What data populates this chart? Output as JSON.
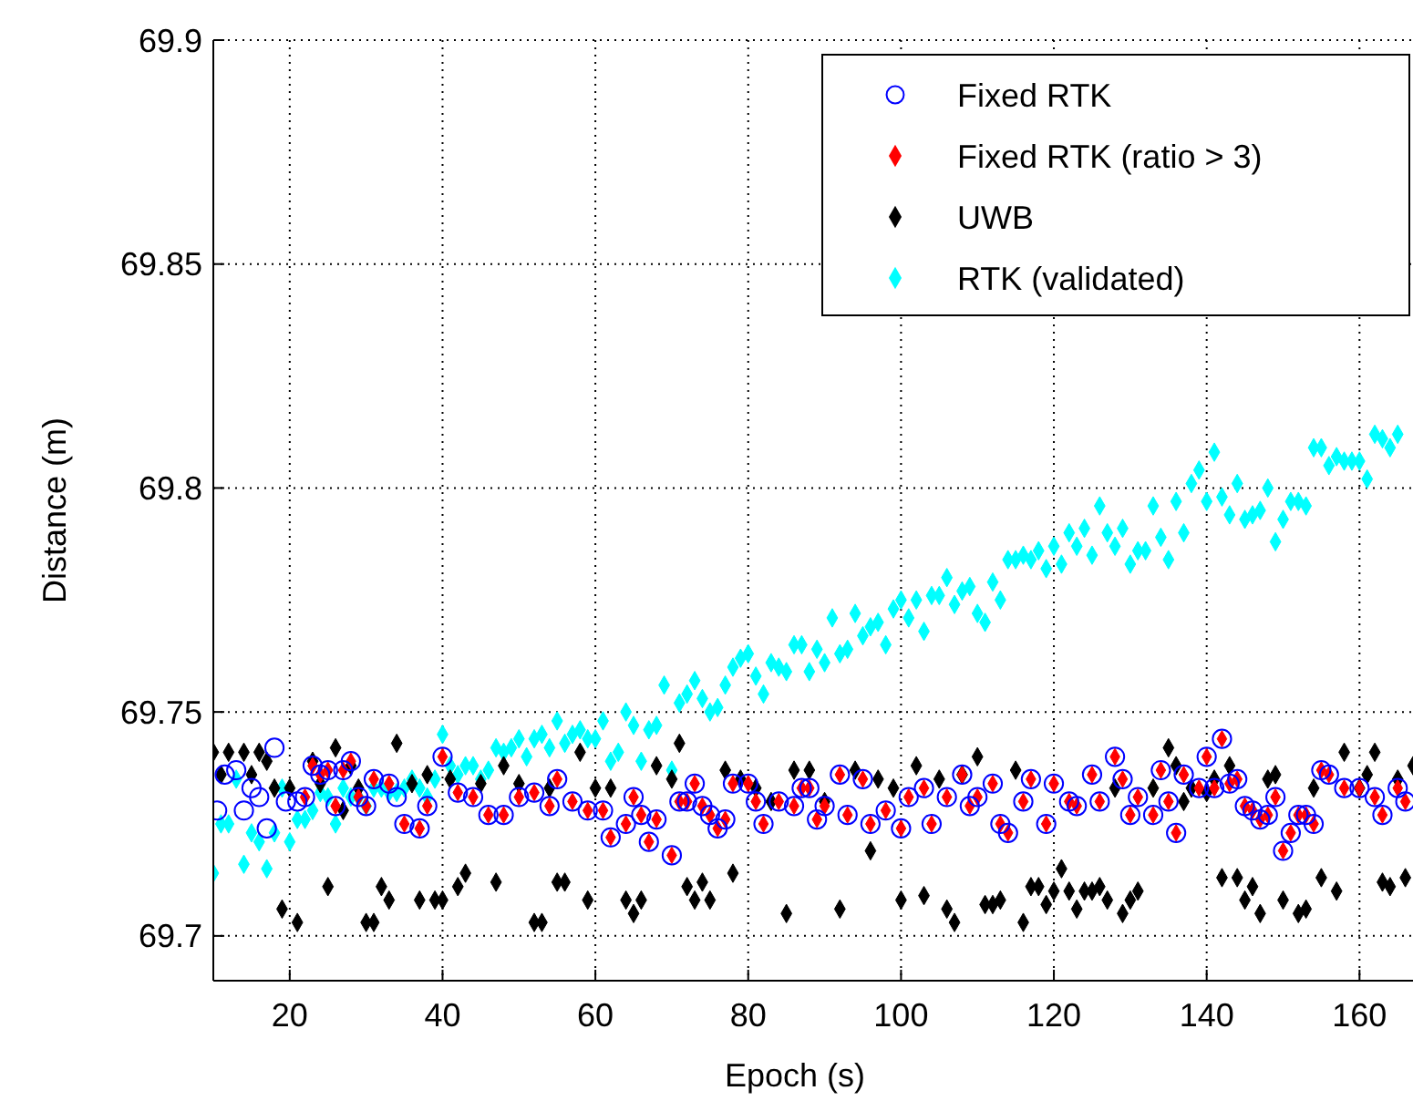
{
  "chart_data": {
    "type": "scatter",
    "xlabel": "Epoch (s)",
    "ylabel": "Distance (m)",
    "xlim": [
      10,
      167
    ],
    "xticks": [
      20,
      40,
      60,
      80,
      100,
      120,
      140,
      160
    ],
    "ylim": [
      69.69,
      69.9
    ],
    "yticks": [
      69.7,
      69.75,
      69.8,
      69.85,
      69.9
    ],
    "grid": true,
    "legend": "top right",
    "series": [
      {
        "name": "Fixed RTK",
        "color": "#0000ff",
        "marker": "circle",
        "x": [
          10.5,
          11.5,
          13,
          14,
          15,
          16,
          17,
          18,
          19.5,
          21,
          22,
          23,
          24,
          25,
          26,
          27,
          28,
          29,
          30,
          31,
          33,
          34,
          35,
          37,
          38,
          40,
          42,
          44,
          46,
          48,
          50,
          52,
          54,
          55,
          57,
          59,
          61,
          62,
          64,
          65,
          66,
          67,
          68,
          70,
          71,
          72,
          73,
          74,
          75,
          76,
          77,
          78,
          80,
          81,
          82,
          84,
          86,
          87,
          88,
          89,
          90,
          92,
          93,
          95,
          96,
          98,
          100,
          101,
          103,
          104,
          106,
          108,
          109,
          110,
          112,
          113,
          114,
          116,
          117,
          119,
          120,
          122,
          123,
          125,
          126,
          128,
          129,
          130,
          131,
          133,
          134,
          135,
          136,
          137,
          139,
          140,
          141,
          142,
          143,
          144,
          145,
          146,
          147,
          148,
          149,
          150,
          151,
          152,
          153,
          154,
          155,
          156,
          158,
          160,
          162,
          163,
          165,
          166
        ],
        "values": [
          69.728,
          69.736,
          69.737,
          69.728,
          69.733,
          69.731,
          69.724,
          69.742,
          69.73,
          69.73,
          69.731,
          69.738,
          69.736,
          69.737,
          69.729,
          69.737,
          69.739,
          69.731,
          69.729,
          69.735,
          69.734,
          69.731,
          69.725,
          69.724,
          69.729,
          69.74,
          69.732,
          69.731,
          69.727,
          69.727,
          69.731,
          69.732,
          69.729,
          69.735,
          69.73,
          69.728,
          69.728,
          69.722,
          69.725,
          69.731,
          69.727,
          69.721,
          69.726,
          69.718,
          69.73,
          69.73,
          69.734,
          69.729,
          69.727,
          69.724,
          69.726,
          69.734,
          69.734,
          69.73,
          69.725,
          69.73,
          69.729,
          69.733,
          69.733,
          69.726,
          69.729,
          69.736,
          69.727,
          69.735,
          69.725,
          69.728,
          69.724,
          69.731,
          69.733,
          69.725,
          69.731,
          69.736,
          69.729,
          69.731,
          69.734,
          69.725,
          69.723,
          69.73,
          69.735,
          69.725,
          69.734,
          69.73,
          69.729,
          69.736,
          69.73,
          69.74,
          69.735,
          69.727,
          69.731,
          69.727,
          69.737,
          69.73,
          69.723,
          69.736,
          69.733,
          69.74,
          69.733,
          69.744,
          69.734,
          69.735,
          69.729,
          69.728,
          69.726,
          69.727,
          69.731,
          69.719,
          69.723,
          69.727,
          69.727,
          69.725,
          69.737,
          69.736,
          69.733,
          69.733,
          69.731,
          69.727,
          69.733,
          69.73
        ]
      },
      {
        "name": "Fixed RTK (ratio > 3)",
        "color": "#ff0000",
        "marker": "diamond",
        "x": [
          22,
          23,
          24,
          25,
          26,
          27,
          28,
          29,
          30,
          31,
          33,
          35,
          37,
          38,
          40,
          42,
          44,
          46,
          48,
          50,
          52,
          54,
          55,
          57,
          59,
          61,
          62,
          64,
          65,
          66,
          67,
          68,
          70,
          71,
          72,
          73,
          74,
          75,
          76,
          77,
          78,
          80,
          81,
          82,
          84,
          86,
          87,
          88,
          89,
          90,
          92,
          93,
          95,
          96,
          98,
          100,
          101,
          103,
          104,
          106,
          108,
          109,
          110,
          112,
          113,
          114,
          116,
          117,
          119,
          120,
          122,
          123,
          125,
          126,
          128,
          129,
          130,
          131,
          133,
          134,
          135,
          136,
          137,
          139,
          140,
          141,
          142,
          143,
          144,
          145,
          146,
          147,
          148,
          149,
          150,
          151,
          152,
          153,
          154,
          155,
          156,
          158,
          160,
          162,
          163,
          165,
          166
        ],
        "values": [
          69.731,
          69.738,
          69.736,
          69.737,
          69.729,
          69.737,
          69.739,
          69.731,
          69.729,
          69.735,
          69.734,
          69.725,
          69.724,
          69.729,
          69.74,
          69.732,
          69.731,
          69.727,
          69.727,
          69.731,
          69.732,
          69.729,
          69.735,
          69.73,
          69.728,
          69.728,
          69.722,
          69.725,
          69.731,
          69.727,
          69.721,
          69.726,
          69.718,
          69.73,
          69.73,
          69.734,
          69.729,
          69.727,
          69.724,
          69.726,
          69.734,
          69.734,
          69.73,
          69.725,
          69.73,
          69.729,
          69.733,
          69.733,
          69.726,
          69.729,
          69.736,
          69.727,
          69.735,
          69.725,
          69.728,
          69.724,
          69.731,
          69.733,
          69.725,
          69.731,
          69.736,
          69.729,
          69.731,
          69.734,
          69.725,
          69.723,
          69.73,
          69.735,
          69.725,
          69.734,
          69.73,
          69.729,
          69.736,
          69.73,
          69.74,
          69.735,
          69.727,
          69.731,
          69.727,
          69.737,
          69.73,
          69.723,
          69.736,
          69.733,
          69.74,
          69.733,
          69.744,
          69.734,
          69.735,
          69.729,
          69.728,
          69.726,
          69.727,
          69.731,
          69.719,
          69.723,
          69.727,
          69.727,
          69.725,
          69.737,
          69.736,
          69.733,
          69.733,
          69.731,
          69.727,
          69.733,
          69.73
        ]
      },
      {
        "name": "UWB",
        "color": "#000000",
        "marker": "diamond",
        "x": [
          10,
          11,
          12,
          14,
          15,
          16,
          17,
          18,
          19,
          20,
          21,
          23,
          24,
          25,
          26,
          27,
          28,
          29,
          30,
          31,
          32,
          33,
          34,
          36,
          37,
          38,
          39,
          40,
          41,
          42,
          43,
          45,
          47,
          48,
          50,
          52,
          53,
          54,
          55,
          56,
          58,
          59,
          60,
          62,
          64,
          65,
          66,
          68,
          70,
          71,
          72,
          73,
          74,
          75,
          77,
          78,
          79,
          81,
          83,
          85,
          86,
          88,
          90,
          92,
          94,
          96,
          97,
          99,
          100,
          102,
          103,
          105,
          106,
          107,
          108,
          110,
          111,
          112,
          113,
          115,
          116,
          117,
          118,
          119,
          120,
          121,
          122,
          123,
          124,
          125,
          126,
          127,
          128,
          129,
          130,
          131,
          133,
          135,
          136,
          137,
          138,
          140,
          141,
          142,
          143,
          144,
          145,
          146,
          147,
          148,
          149,
          150,
          152,
          153,
          154,
          155,
          157,
          158,
          160,
          161,
          162,
          163,
          164,
          165,
          166,
          167
        ],
        "values": [
          69.741,
          69.736,
          69.741,
          69.741,
          69.736,
          69.741,
          69.739,
          69.733,
          69.706,
          69.733,
          69.703,
          69.739,
          69.734,
          69.711,
          69.742,
          69.728,
          69.738,
          69.733,
          69.703,
          69.703,
          69.711,
          69.708,
          69.743,
          69.734,
          69.708,
          69.736,
          69.708,
          69.708,
          69.735,
          69.711,
          69.714,
          69.734,
          69.712,
          69.738,
          69.734,
          69.703,
          69.703,
          69.733,
          69.712,
          69.712,
          69.741,
          69.708,
          69.733,
          69.733,
          69.708,
          69.705,
          69.708,
          69.738,
          69.735,
          69.743,
          69.711,
          69.708,
          69.712,
          69.708,
          69.737,
          69.714,
          69.735,
          69.733,
          69.73,
          69.705,
          69.737,
          69.737,
          69.73,
          69.706,
          69.737,
          69.719,
          69.735,
          69.733,
          69.708,
          69.738,
          69.709,
          69.735,
          69.706,
          69.703,
          69.736,
          69.74,
          69.707,
          69.707,
          69.708,
          69.737,
          69.703,
          69.711,
          69.711,
          69.707,
          69.71,
          69.715,
          69.71,
          69.706,
          69.71,
          69.71,
          69.711,
          69.708,
          69.733,
          69.705,
          69.708,
          69.71,
          69.733,
          69.742,
          69.738,
          69.73,
          69.733,
          69.732,
          69.735,
          69.713,
          69.738,
          69.713,
          69.708,
          69.711,
          69.705,
          69.735,
          69.736,
          69.708,
          69.705,
          69.706,
          69.733,
          69.713,
          69.71,
          69.741,
          69.733,
          69.736,
          69.741,
          69.712,
          69.711,
          69.735,
          69.713,
          69.738
        ]
      },
      {
        "name": "RTK (validated)",
        "color": "#00ffff",
        "marker": "diamond",
        "x": [
          10,
          11,
          12,
          13,
          14,
          15,
          16,
          17,
          18,
          19,
          20,
          21,
          22,
          23,
          24,
          25,
          26,
          27,
          28,
          29,
          30,
          31,
          32,
          33,
          34,
          35,
          36,
          37,
          38,
          39,
          40,
          41,
          42,
          43,
          44,
          45,
          46,
          47,
          48,
          49,
          50,
          51,
          52,
          53,
          54,
          55,
          56,
          57,
          58,
          59,
          60,
          61,
          62,
          63,
          64,
          65,
          66,
          67,
          68,
          69,
          70,
          71,
          72,
          73,
          74,
          75,
          76,
          77,
          78,
          79,
          80,
          81,
          82,
          83,
          84,
          85,
          86,
          87,
          88,
          89,
          90,
          91,
          92,
          93,
          94,
          95,
          96,
          97,
          98,
          99,
          100,
          101,
          102,
          103,
          104,
          105,
          106,
          107,
          108,
          109,
          110,
          111,
          112,
          113,
          114,
          115,
          116,
          117,
          118,
          119,
          120,
          121,
          122,
          123,
          124,
          125,
          126,
          127,
          128,
          129,
          130,
          131,
          132,
          133,
          134,
          135,
          136,
          137,
          138,
          139,
          140,
          141,
          142,
          143,
          144,
          145,
          146,
          147,
          148,
          149,
          150,
          151,
          152,
          153,
          154,
          155,
          156,
          157,
          158,
          159,
          160,
          161,
          162,
          163,
          164,
          165
        ],
        "values": [
          69.714,
          69.725,
          69.725,
          69.735,
          69.716,
          69.723,
          69.721,
          69.715,
          69.723,
          69.733,
          69.721,
          69.726,
          69.726,
          69.728,
          69.732,
          69.731,
          69.725,
          69.733,
          69.731,
          69.731,
          69.729,
          69.733,
          69.733,
          69.732,
          69.732,
          69.733,
          69.735,
          69.733,
          69.731,
          69.735,
          69.745,
          69.738,
          69.736,
          69.738,
          69.738,
          69.735,
          69.737,
          69.742,
          69.741,
          69.742,
          69.744,
          69.74,
          69.744,
          69.745,
          69.742,
          69.748,
          69.743,
          69.745,
          69.746,
          69.744,
          69.744,
          69.748,
          69.739,
          69.741,
          69.75,
          69.747,
          69.739,
          69.746,
          69.747,
          69.756,
          69.737,
          69.752,
          69.754,
          69.757,
          69.753,
          69.75,
          69.751,
          69.756,
          69.76,
          69.762,
          69.763,
          69.758,
          69.754,
          69.761,
          69.76,
          69.759,
          69.765,
          69.765,
          69.759,
          69.764,
          69.761,
          69.771,
          69.763,
          69.764,
          69.772,
          69.767,
          69.769,
          69.77,
          69.765,
          69.773,
          69.775,
          69.771,
          69.775,
          69.768,
          69.776,
          69.776,
          69.78,
          69.774,
          69.777,
          69.778,
          69.772,
          69.77,
          69.779,
          69.775,
          69.784,
          69.784,
          69.785,
          69.784,
          69.786,
          69.782,
          69.787,
          69.783,
          69.79,
          69.787,
          69.791,
          69.785,
          69.796,
          69.79,
          69.787,
          69.791,
          69.783,
          69.786,
          69.786,
          69.796,
          69.789,
          69.784,
          69.797,
          69.79,
          69.801,
          69.804,
          69.797,
          69.808,
          69.798,
          69.794,
          69.801,
          69.793,
          69.794,
          69.795,
          69.8,
          69.788,
          69.793,
          69.797,
          69.797,
          69.796,
          69.809,
          69.809,
          69.805,
          69.807,
          69.806,
          69.806,
          69.806,
          69.802,
          69.812,
          69.811,
          69.809,
          69.812
        ]
      }
    ]
  }
}
